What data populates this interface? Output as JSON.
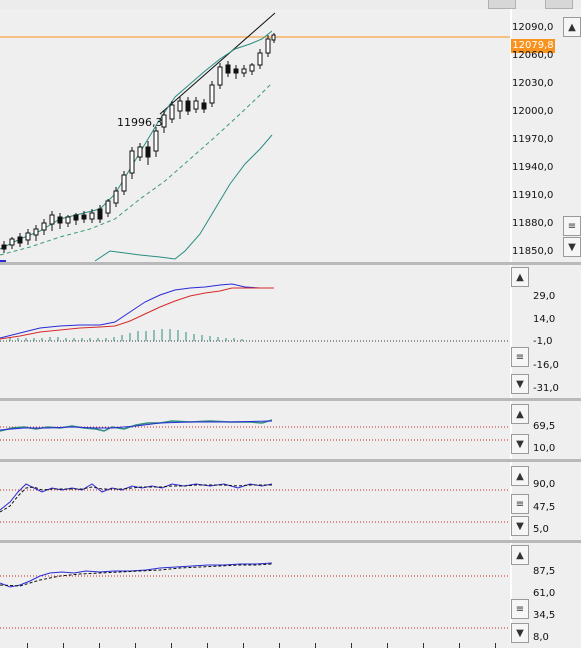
{
  "colors": {
    "background": "#efefef",
    "price_line": "#f7931e",
    "candles": "#111111",
    "bollinger": "#2a8c82",
    "dashed_ma": "#3a9c6e",
    "macd_line": "#2a2ad6",
    "signal_line": "#d62a2a",
    "histogram": "#2a8c82",
    "threshold_line": "#c62828"
  },
  "price_panel": {
    "current_price_label": "12079,8",
    "annotation": "11996,3",
    "y_labels": [
      "12090,0",
      "12060,0",
      "12030,0",
      "12000,0",
      "11970,0",
      "11940,0",
      "11910,0",
      "11880,0",
      "11850,0"
    ]
  },
  "macd_panel": {
    "y_labels": [
      "29,0",
      "14,0",
      "-1,0",
      "-16,0",
      "-31,0"
    ]
  },
  "ind2_panel": {
    "y_labels": [
      "69,5",
      "10,0"
    ]
  },
  "ind3_panel": {
    "y_labels": [
      "90,0",
      "47,5",
      "5,0"
    ]
  },
  "ind4_panel": {
    "y_labels": [
      "87,5",
      "61,0",
      "34,5",
      "8,0"
    ]
  },
  "icons": {
    "scroll_up": "▲",
    "scroll_down": "▼",
    "scroll_grip": "≡"
  }
}
